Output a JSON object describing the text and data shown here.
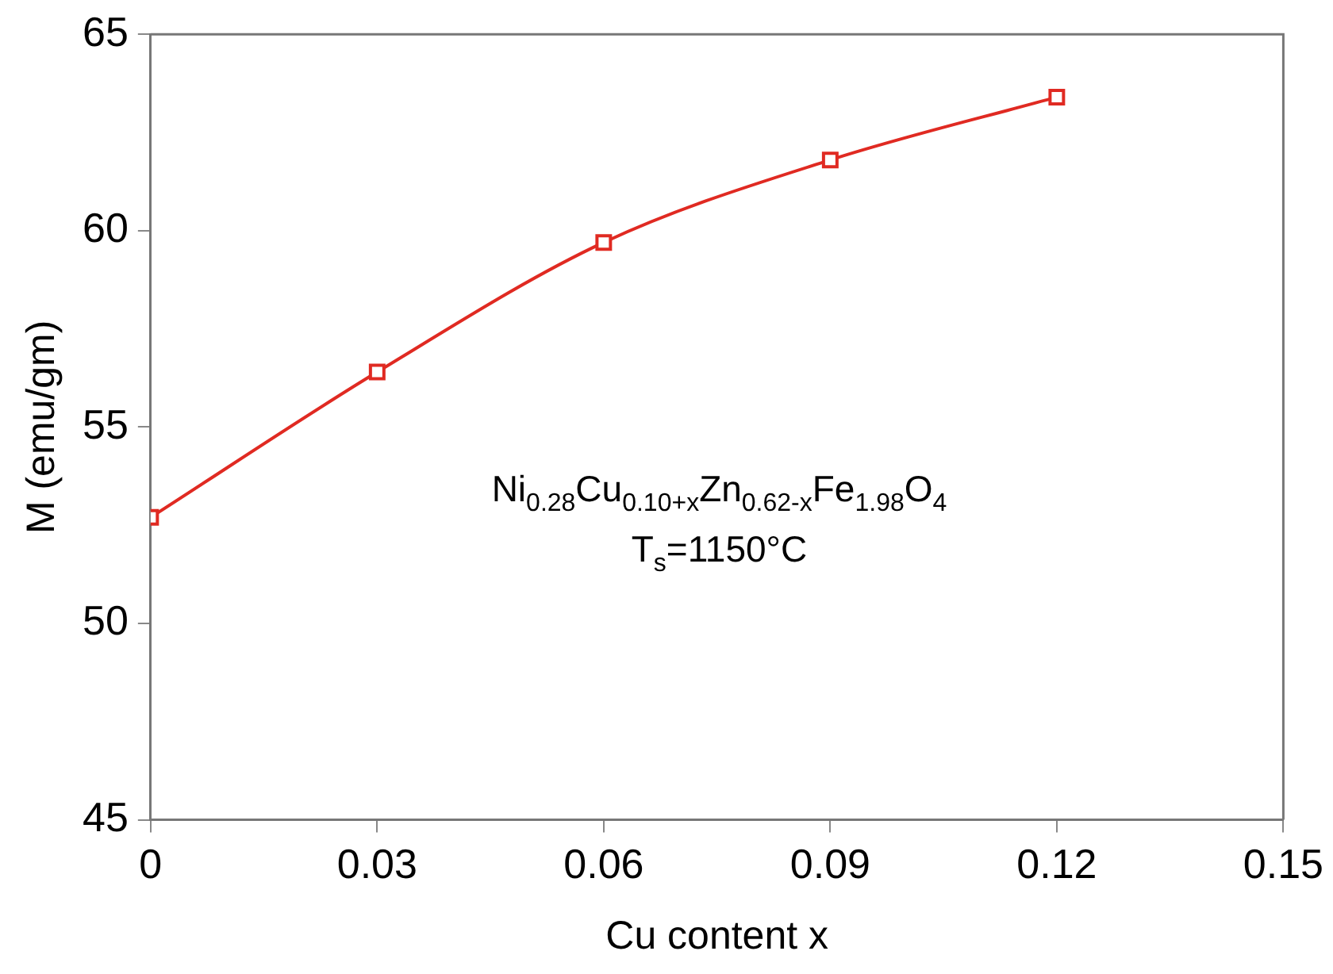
{
  "chart_data": {
    "type": "line",
    "xlabel": "Cu content x",
    "ylabel": "M (emu/gm)",
    "x": [
      0,
      0.03,
      0.06,
      0.09,
      0.12
    ],
    "series": [
      {
        "color": "#e02a22",
        "values": [
          52.7,
          56.4,
          59.7,
          61.8,
          63.4
        ]
      }
    ],
    "xlim": [
      0,
      0.15
    ],
    "xticks": [
      0,
      0.03,
      0.06,
      0.09,
      0.12,
      0.15
    ],
    "ylim": [
      45,
      65
    ],
    "yticks": [
      45,
      50,
      55,
      60,
      65
    ],
    "grid": false,
    "legend": false,
    "marker": "square",
    "line_style": "solid",
    "annotations": [
      "Ni$_{0.28}$Cu$_{0.10+x}$Zn$_{0.62-x}$Fe$_{1.98}$O$_{4}$",
      "T$_{s}$=1150°C"
    ]
  }
}
